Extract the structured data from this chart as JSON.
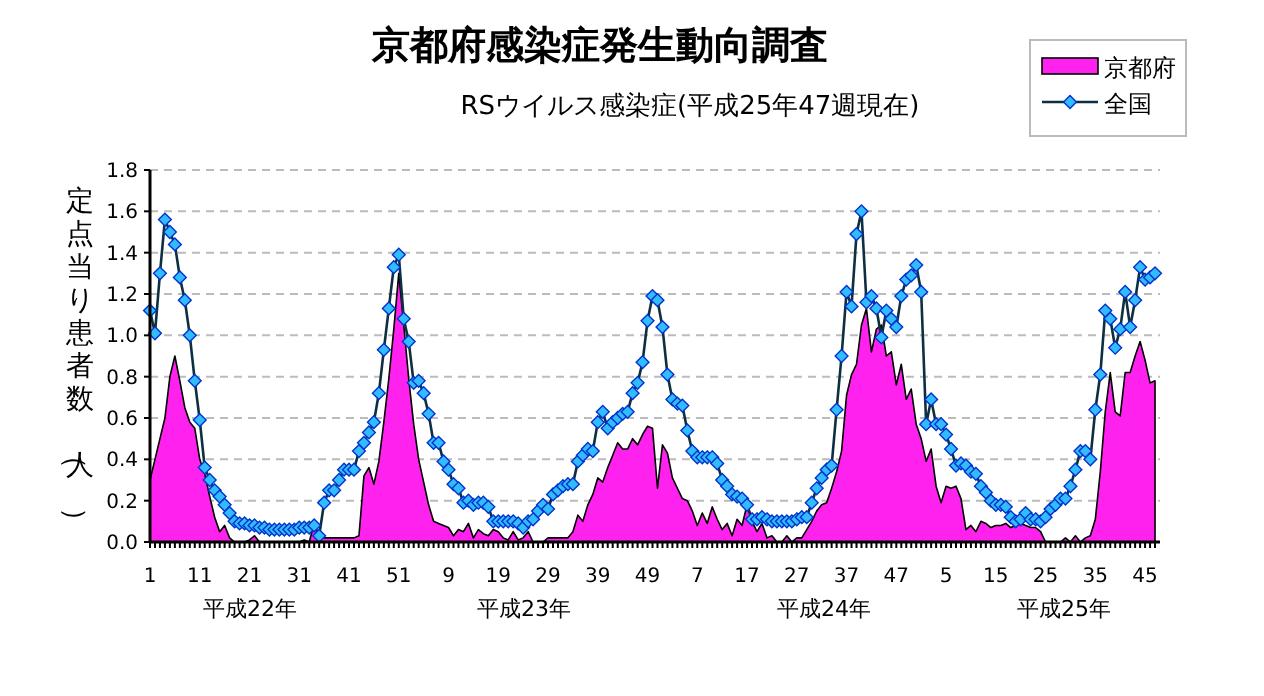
{
  "chart_data": {
    "type": "line",
    "title": "京都府感染症発生動向調査",
    "subtitle": "RSウイルス感染症(平成25年47週現在)",
    "ylabel": "定点当り患者数（人）",
    "annotations": [
      "平成22年",
      "平成23年",
      "平成24年",
      "平成25年"
    ],
    "categories": [
      "1",
      null,
      null,
      null,
      null,
      null,
      null,
      null,
      null,
      null,
      "11",
      null,
      null,
      null,
      null,
      null,
      null,
      null,
      null,
      null,
      "21",
      null,
      null,
      null,
      null,
      null,
      null,
      null,
      null,
      null,
      "31",
      null,
      null,
      null,
      null,
      null,
      null,
      null,
      null,
      null,
      "41",
      null,
      null,
      null,
      null,
      null,
      null,
      null,
      null,
      null,
      "51",
      null,
      null,
      null,
      null,
      null,
      null,
      null,
      null,
      null,
      "9",
      null,
      null,
      null,
      null,
      null,
      null,
      null,
      null,
      null,
      "19",
      null,
      null,
      null,
      null,
      null,
      null,
      null,
      null,
      null,
      "29",
      null,
      null,
      null,
      null,
      null,
      null,
      null,
      null,
      null,
      "39",
      null,
      null,
      null,
      null,
      null,
      null,
      null,
      null,
      null,
      "49",
      null,
      null,
      null,
      null,
      null,
      null,
      null,
      null,
      null,
      "7",
      null,
      null,
      null,
      null,
      null,
      null,
      null,
      null,
      null,
      "17",
      null,
      null,
      null,
      null,
      null,
      null,
      null,
      null,
      null,
      "27",
      null,
      null,
      null,
      null,
      null,
      null,
      null,
      null,
      null,
      "37",
      null,
      null,
      null,
      null,
      null,
      null,
      null,
      null,
      null,
      "47",
      null,
      null,
      null,
      null,
      null,
      null,
      null,
      null,
      null,
      "5",
      null,
      null,
      null,
      null,
      null,
      null,
      null,
      null,
      null,
      "15",
      null,
      null,
      null,
      null,
      null,
      null,
      null,
      null,
      null,
      "25",
      null,
      null,
      null,
      null,
      null,
      null,
      null,
      null,
      null,
      "35",
      null,
      null,
      null,
      null,
      null,
      null,
      null,
      null,
      null,
      "45",
      null,
      null
    ],
    "series": [
      {
        "name": "京都府",
        "type": "area",
        "color": "#ff22ee",
        "values": [
          0.3,
          0.4,
          0.5,
          0.6,
          0.8,
          0.9,
          0.78,
          0.65,
          0.58,
          0.55,
          0.4,
          0.33,
          0.22,
          0.12,
          0.05,
          0.08,
          0.02,
          0.0,
          0.0,
          0.0,
          0.01,
          0.03,
          0.0,
          0.0,
          0.0,
          0.0,
          0.0,
          0.0,
          0.0,
          0.0,
          0.0,
          0.01,
          0.0,
          0.09,
          0.02,
          0.02,
          0.02,
          0.02,
          0.02,
          0.02,
          0.02,
          0.02,
          0.03,
          0.32,
          0.36,
          0.28,
          0.39,
          0.58,
          0.79,
          1.03,
          1.3,
          1.05,
          0.79,
          0.57,
          0.4,
          0.29,
          0.18,
          0.1,
          0.09,
          0.08,
          0.07,
          0.03,
          0.06,
          0.05,
          0.09,
          0.02,
          0.06,
          0.04,
          0.03,
          0.06,
          0.05,
          0.02,
          0.01,
          0.05,
          0.01,
          0.02,
          0.05,
          0.0,
          0.0,
          0.0,
          0.02,
          0.02,
          0.02,
          0.02,
          0.02,
          0.05,
          0.13,
          0.1,
          0.18,
          0.23,
          0.31,
          0.29,
          0.36,
          0.42,
          0.48,
          0.45,
          0.45,
          0.5,
          0.47,
          0.52,
          0.56,
          0.55,
          0.26,
          0.47,
          0.43,
          0.31,
          0.26,
          0.21,
          0.2,
          0.15,
          0.08,
          0.14,
          0.09,
          0.17,
          0.11,
          0.06,
          0.09,
          0.03,
          0.11,
          0.08,
          0.18,
          0.1,
          0.05,
          0.09,
          0.02,
          0.03,
          0.0,
          0.0,
          0.03,
          0.0,
          0.02,
          0.02,
          0.06,
          0.1,
          0.15,
          0.18,
          0.19,
          0.26,
          0.34,
          0.44,
          0.71,
          0.81,
          0.86,
          1.05,
          1.13,
          0.92,
          1.03,
          1.05,
          0.9,
          0.92,
          0.76,
          0.86,
          0.69,
          0.74,
          0.57,
          0.5,
          0.39,
          0.45,
          0.27,
          0.19,
          0.27,
          0.26,
          0.27,
          0.21,
          0.06,
          0.08,
          0.05,
          0.1,
          0.09,
          0.07,
          0.08,
          0.08,
          0.09,
          0.07,
          0.08,
          0.09,
          0.08,
          0.07,
          0.07,
          0.05,
          0.0,
          0.0,
          0.0,
          0.0,
          0.02,
          0.0,
          0.03,
          0.0,
          0.02,
          0.03,
          0.11,
          0.34,
          0.63,
          0.82,
          0.63,
          0.61,
          0.82,
          0.82,
          0.9,
          0.97,
          0.88,
          0.77,
          0.78
        ]
      },
      {
        "name": "全国",
        "color": "#33bbff",
        "marker": "diamond",
        "values": [
          1.12,
          1.01,
          1.3,
          1.56,
          1.5,
          1.44,
          1.28,
          1.17,
          1.0,
          0.78,
          0.59,
          0.36,
          0.3,
          0.25,
          0.22,
          0.18,
          0.14,
          0.1,
          0.09,
          0.09,
          0.08,
          0.08,
          0.07,
          0.07,
          0.06,
          0.06,
          0.06,
          0.06,
          0.06,
          0.06,
          0.07,
          0.07,
          0.07,
          0.08,
          0.03,
          0.19,
          0.25,
          0.25,
          0.3,
          0.35,
          0.35,
          0.35,
          0.44,
          0.48,
          0.53,
          0.58,
          0.72,
          0.93,
          1.13,
          1.33,
          1.39,
          1.08,
          0.97,
          0.77,
          0.78,
          0.72,
          0.62,
          0.48,
          0.48,
          0.39,
          0.35,
          0.28,
          0.26,
          0.19,
          0.2,
          0.18,
          0.19,
          0.19,
          0.17,
          0.1,
          0.1,
          0.1,
          0.1,
          0.1,
          0.09,
          0.07,
          0.1,
          0.11,
          0.15,
          0.18,
          0.16,
          0.23,
          0.25,
          0.27,
          0.28,
          0.28,
          0.39,
          0.42,
          0.45,
          0.44,
          0.58,
          0.63,
          0.55,
          0.58,
          0.6,
          0.62,
          0.63,
          0.72,
          0.77,
          0.87,
          1.07,
          1.19,
          1.17,
          1.04,
          0.81,
          0.69,
          0.67,
          0.66,
          0.54,
          0.44,
          0.41,
          0.41,
          0.41,
          0.41,
          0.38,
          0.3,
          0.27,
          0.23,
          0.22,
          0.21,
          0.18,
          0.11,
          0.11,
          0.12,
          0.11,
          0.1,
          0.1,
          0.1,
          0.1,
          0.1,
          0.11,
          0.12,
          0.12,
          0.19,
          0.26,
          0.31,
          0.35,
          0.37,
          0.64,
          0.9,
          1.21,
          1.14,
          1.49,
          1.6,
          1.16,
          1.19,
          1.13,
          0.99,
          1.12,
          1.08,
          1.04,
          1.19,
          1.27,
          1.29,
          1.34,
          1.21,
          0.57,
          0.69,
          0.57,
          0.57,
          0.52,
          0.45,
          0.37,
          0.38,
          0.37,
          0.34,
          0.33,
          0.27,
          0.24,
          0.2,
          0.18,
          0.18,
          0.17,
          0.12,
          0.1,
          0.11,
          0.14,
          0.11,
          0.11,
          0.1,
          0.12,
          0.16,
          0.18,
          0.21,
          0.21,
          0.27,
          0.35,
          0.44,
          0.44,
          0.4,
          0.64,
          0.81,
          1.12,
          1.08,
          0.94,
          1.03,
          1.21,
          1.04,
          1.17,
          1.33,
          1.27,
          1.28,
          1.3
        ]
      }
    ],
    "ylim": [
      0,
      1.8
    ],
    "yticks": [
      {
        "value": 0,
        "label": "0.0"
      },
      {
        "value": 0.2,
        "label": "0.2"
      },
      {
        "value": 0.4,
        "label": "0.4"
      },
      {
        "value": 0.6,
        "label": "0.6"
      },
      {
        "value": 0.8,
        "label": "0.8"
      },
      {
        "value": 1.0,
        "label": "1.0"
      },
      {
        "value": 1.2,
        "label": "1.2"
      },
      {
        "value": 1.4,
        "label": "1.4"
      },
      {
        "value": 1.6,
        "label": "1.6"
      },
      {
        "value": 1.8,
        "label": "1.8"
      }
    ],
    "grid": "y",
    "legend": "top right"
  }
}
